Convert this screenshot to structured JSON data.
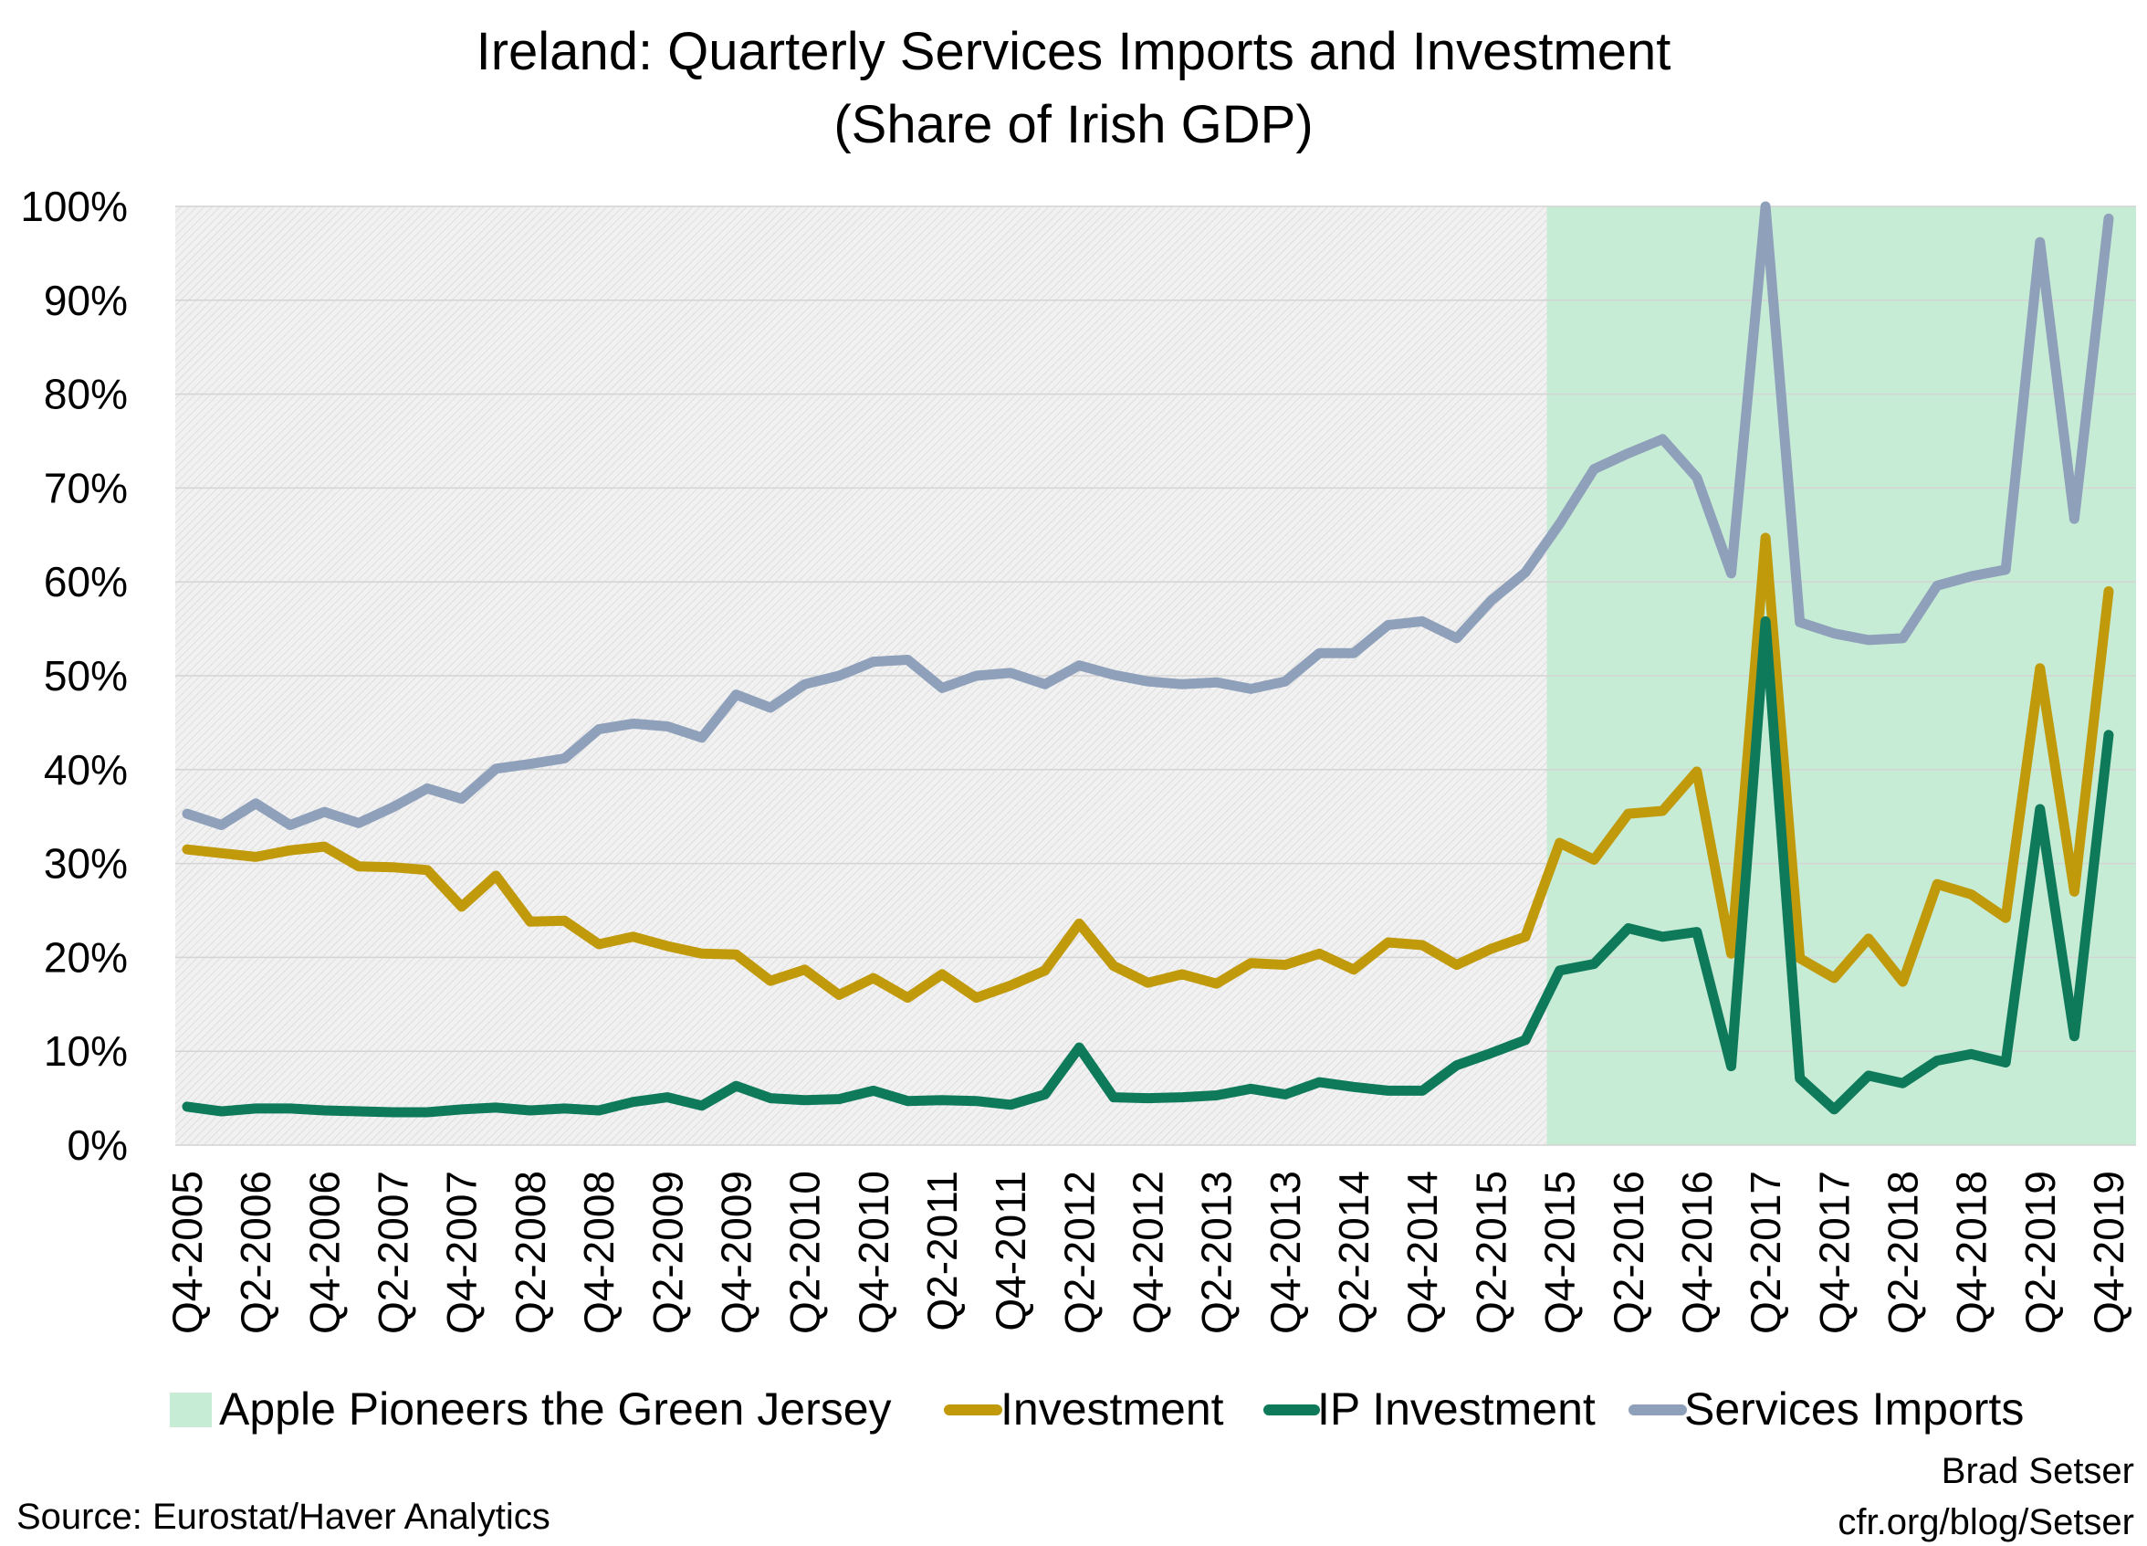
{
  "chart_data": {
    "type": "line",
    "title": "Ireland: Quarterly Services Imports and Investment",
    "subtitle": "(Share of Irish GDP)",
    "ylim": [
      0,
      1
    ],
    "yticks": [
      "0%",
      "10%",
      "20%",
      "30%",
      "40%",
      "50%",
      "60%",
      "70%",
      "80%",
      "90%",
      "100%"
    ],
    "grid": true,
    "legend_position": "bottom",
    "x": [
      "Q4-2005",
      "Q1-2006",
      "Q2-2006",
      "Q3-2006",
      "Q4-2006",
      "Q1-2007",
      "Q2-2007",
      "Q3-2007",
      "Q4-2007",
      "Q1-2008",
      "Q2-2008",
      "Q3-2008",
      "Q4-2008",
      "Q1-2009",
      "Q2-2009",
      "Q3-2009",
      "Q4-2009",
      "Q1-2010",
      "Q2-2010",
      "Q3-2010",
      "Q4-2010",
      "Q1-2011",
      "Q2-2011",
      "Q3-2011",
      "Q4-2011",
      "Q1-2012",
      "Q2-2012",
      "Q3-2012",
      "Q4-2012",
      "Q1-2013",
      "Q2-2013",
      "Q3-2013",
      "Q4-2013",
      "Q1-2014",
      "Q2-2014",
      "Q3-2014",
      "Q4-2014",
      "Q1-2015",
      "Q2-2015",
      "Q3-2015",
      "Q4-2015",
      "Q1-2016",
      "Q2-2016",
      "Q3-2016",
      "Q4-2016",
      "Q1-2017",
      "Q2-2017",
      "Q3-2017",
      "Q4-2017",
      "Q1-2018",
      "Q2-2018",
      "Q3-2018",
      "Q4-2018",
      "Q1-2019",
      "Q2-2019",
      "Q3-2019",
      "Q4-2019"
    ],
    "x_tick_labels": [
      "Q4-2005",
      "Q2-2006",
      "Q4-2006",
      "Q2-2007",
      "Q4-2007",
      "Q2-2008",
      "Q4-2008",
      "Q2-2009",
      "Q4-2009",
      "Q2-2010",
      "Q4-2010",
      "Q2-2011",
      "Q4-2011",
      "Q2-2012",
      "Q4-2012",
      "Q2-2013",
      "Q4-2013",
      "Q2-2014",
      "Q4-2014",
      "Q2-2015",
      "Q4-2015",
      "Q2-2016",
      "Q4-2016",
      "Q2-2017",
      "Q4-2017",
      "Q2-2018",
      "Q4-2018",
      "Q2-2019",
      "Q4-2019"
    ],
    "shaded_region": {
      "name": "Apple Pioneers the Green Jersey",
      "from": "Q4-2015",
      "to": "Q4-2019",
      "color": "#c7ecd6"
    },
    "series": [
      {
        "name": "Investment",
        "color": "#c19a0b",
        "values": [
          0.315,
          0.311,
          0.307,
          0.314,
          0.318,
          0.297,
          0.296,
          0.293,
          0.254,
          0.287,
          0.238,
          0.239,
          0.214,
          0.222,
          0.212,
          0.204,
          0.203,
          0.175,
          0.187,
          0.16,
          0.178,
          0.157,
          0.182,
          0.157,
          0.17,
          0.186,
          0.236,
          0.191,
          0.173,
          0.182,
          0.172,
          0.194,
          0.192,
          0.204,
          0.187,
          0.216,
          0.213,
          0.192,
          0.209,
          0.222,
          0.322,
          0.304,
          0.353,
          0.356,
          0.398,
          0.204,
          0.647,
          0.199,
          0.178,
          0.22,
          0.174,
          0.278,
          0.267,
          0.242,
          0.508,
          0.27,
          0.59
        ]
      },
      {
        "name": "IP Investment",
        "color": "#0f7a5a",
        "values": [
          0.041,
          0.036,
          0.039,
          0.039,
          0.037,
          0.036,
          0.035,
          0.035,
          0.038,
          0.04,
          0.037,
          0.039,
          0.037,
          0.046,
          0.051,
          0.042,
          0.063,
          0.05,
          0.048,
          0.049,
          0.058,
          0.047,
          0.048,
          0.047,
          0.043,
          0.054,
          0.104,
          0.051,
          0.05,
          0.051,
          0.053,
          0.06,
          0.054,
          0.067,
          0.062,
          0.058,
          0.058,
          0.085,
          0.098,
          0.112,
          0.186,
          0.193,
          0.231,
          0.222,
          0.227,
          0.084,
          0.558,
          0.071,
          0.038,
          0.074,
          0.066,
          0.09,
          0.097,
          0.088,
          0.358,
          0.116,
          0.437
        ]
      },
      {
        "name": "Services Imports",
        "color": "#8fa0ba",
        "values": [
          0.353,
          0.341,
          0.364,
          0.341,
          0.355,
          0.343,
          0.36,
          0.38,
          0.369,
          0.401,
          0.406,
          0.412,
          0.443,
          0.449,
          0.446,
          0.434,
          0.48,
          0.466,
          0.491,
          0.5,
          0.515,
          0.517,
          0.487,
          0.5,
          0.503,
          0.491,
          0.511,
          0.501,
          0.494,
          0.491,
          0.493,
          0.486,
          0.494,
          0.524,
          0.524,
          0.554,
          0.558,
          0.54,
          0.58,
          0.61,
          0.662,
          0.72,
          0.737,
          0.752,
          0.711,
          0.609,
          1.0,
          0.557,
          0.545,
          0.538,
          0.54,
          0.596,
          0.606,
          0.613,
          0.962,
          0.667,
          0.987
        ]
      }
    ]
  },
  "legend": [
    {
      "label": "Apple Pioneers the Green Jersey",
      "color": "#c7ecd6",
      "kind": "box"
    },
    {
      "label": "Investment",
      "color": "#c19a0b",
      "kind": "line"
    },
    {
      "label": "IP Investment",
      "color": "#0f7a5a",
      "kind": "line"
    },
    {
      "label": "Services Imports",
      "color": "#8fa0ba",
      "kind": "line"
    }
  ],
  "source": "Source: Eurostat/Haver Analytics",
  "credit": {
    "author": "Brad Setser",
    "url": "cfr.org/blog/Setser"
  }
}
